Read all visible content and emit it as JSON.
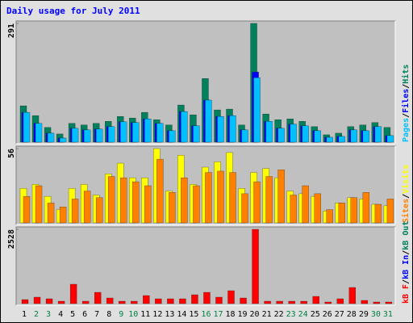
{
  "chart_data": [
    {
      "type": "bar",
      "title": "Daily usage for July 2011",
      "ylim": [
        0,
        291
      ],
      "yticks": [
        291
      ],
      "series": [
        {
          "name": "Hits",
          "color": "#00805c",
          "values": [
            89,
            65,
            36,
            20,
            46,
            42,
            46,
            51,
            63,
            59,
            73,
            55,
            42,
            91,
            67,
            156,
            79,
            81,
            42,
            291,
            69,
            55,
            57,
            51,
            38,
            18,
            22,
            38,
            42,
            48,
            36
          ]
        },
        {
          "name": "Files",
          "color": "#0000ff",
          "values": [
            73,
            46,
            22,
            10,
            34,
            30,
            32,
            38,
            50,
            48,
            57,
            46,
            28,
            75,
            40,
            103,
            63,
            65,
            30,
            172,
            51,
            34,
            44,
            40,
            28,
            12,
            14,
            30,
            28,
            38,
            16
          ]
        },
        {
          "name": "Pages",
          "color": "#00c0ff",
          "values": [
            73,
            46,
            22,
            10,
            34,
            30,
            32,
            38,
            50,
            48,
            57,
            46,
            28,
            75,
            40,
            103,
            63,
            65,
            30,
            158,
            51,
            34,
            44,
            40,
            28,
            12,
            14,
            30,
            28,
            38,
            16
          ]
        }
      ],
      "legend_separator": "/"
    },
    {
      "type": "bar",
      "ylim": [
        0,
        56
      ],
      "yticks": [
        56
      ],
      "series": [
        {
          "name": "Visits",
          "color": "#ffff00",
          "values": [
            26,
            29,
            20,
            10,
            26,
            29,
            21,
            37,
            45,
            34,
            34,
            56,
            24,
            51,
            29,
            42,
            46,
            53,
            26,
            38,
            41,
            34,
            24,
            22,
            20,
            9,
            15,
            19,
            18,
            14,
            13
          ]
        },
        {
          "name": "Sites",
          "color": "#ff8000",
          "values": [
            20,
            28,
            15,
            12,
            18,
            24,
            19,
            35,
            34,
            31,
            28,
            48,
            23,
            34,
            28,
            38,
            39,
            38,
            22,
            31,
            35,
            40,
            21,
            28,
            22,
            10,
            15,
            19,
            23,
            14,
            18
          ]
        }
      ],
      "legend_separator": "/"
    },
    {
      "type": "bar",
      "ylim": [
        0,
        2528
      ],
      "yticks": [
        2528
      ],
      "categories": [
        "1",
        "2",
        "3",
        "4",
        "5",
        "6",
        "7",
        "8",
        "9",
        "10",
        "11",
        "12",
        "13",
        "14",
        "15",
        "16",
        "17",
        "18",
        "19",
        "20",
        "21",
        "22",
        "23",
        "24",
        "25",
        "26",
        "27",
        "28",
        "29",
        "30",
        "31"
      ],
      "category_colors": [
        "#000000",
        "#008040",
        "#008040",
        "#000000",
        "#000000",
        "#000000",
        "#000000",
        "#000000",
        "#008040",
        "#008040",
        "#000000",
        "#000000",
        "#000000",
        "#000000",
        "#000000",
        "#008040",
        "#008040",
        "#000000",
        "#000000",
        "#000000",
        "#000000",
        "#000000",
        "#008040",
        "#008040",
        "#000000",
        "#000000",
        "#000000",
        "#000000",
        "#000000",
        "#008040",
        "#008040"
      ],
      "series": [
        {
          "name": "kB F",
          "color": "#ff0000",
          "values": [
            137,
            220,
            165,
            82,
            660,
            82,
            385,
            192,
            82,
            82,
            275,
            165,
            165,
            165,
            302,
            385,
            220,
            440,
            192,
            2528,
            82,
            82,
            82,
            82,
            247,
            55,
            165,
            550,
            110,
            55,
            55
          ]
        }
      ],
      "extra_legend": [
        {
          "name": "kB In",
          "color": "#0000ff"
        },
        {
          "name": "kB Out",
          "color": "#00805c"
        }
      ],
      "legend_separator": "/"
    }
  ]
}
